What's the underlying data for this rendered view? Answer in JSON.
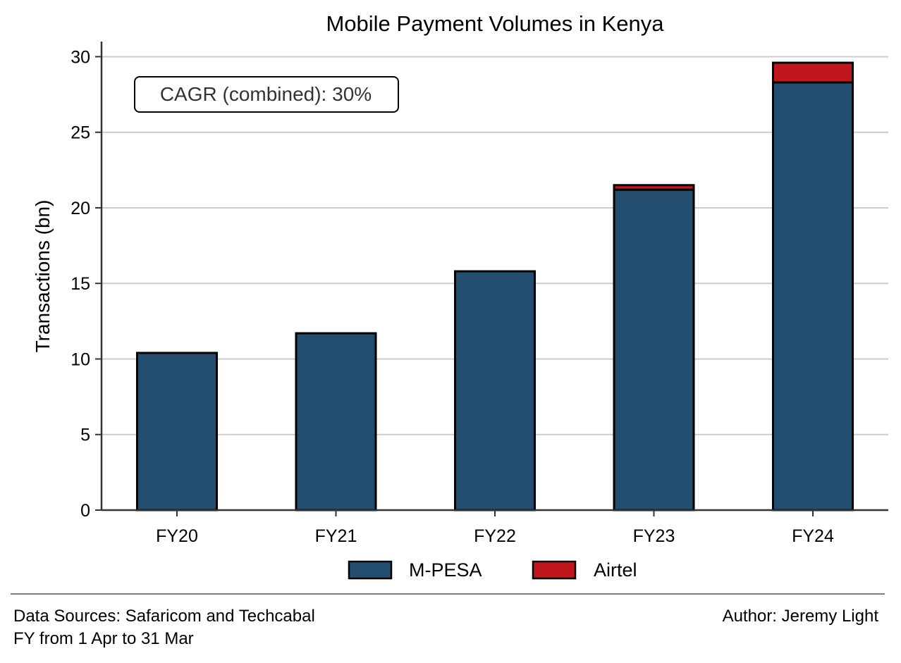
{
  "chart_data": {
    "type": "bar",
    "stacked": true,
    "title": "Mobile Payment Volumes in Kenya",
    "xlabel": "",
    "ylabel": "Transactions (bn)",
    "categories": [
      "FY20",
      "FY21",
      "FY22",
      "FY23",
      "FY24"
    ],
    "series": [
      {
        "name": "M-PESA",
        "color": "#234e70",
        "values": [
          10.4,
          11.7,
          15.8,
          21.2,
          28.3
        ]
      },
      {
        "name": "Airtel",
        "color": "#c0161c",
        "values": [
          0,
          0,
          0,
          0.3,
          1.3
        ]
      }
    ],
    "ylim": [
      0,
      31
    ],
    "yticks": [
      0,
      5,
      10,
      15,
      20,
      25,
      30
    ],
    "grid": "y",
    "legend_position": "bottom-center",
    "annotation": "CAGR (combined): 30%"
  },
  "footer": {
    "sources": "Data Sources: Safaricom and Techcabal",
    "fy_note": "FY from 1 Apr to 31 Mar",
    "author": "Author: Jeremy Light"
  }
}
